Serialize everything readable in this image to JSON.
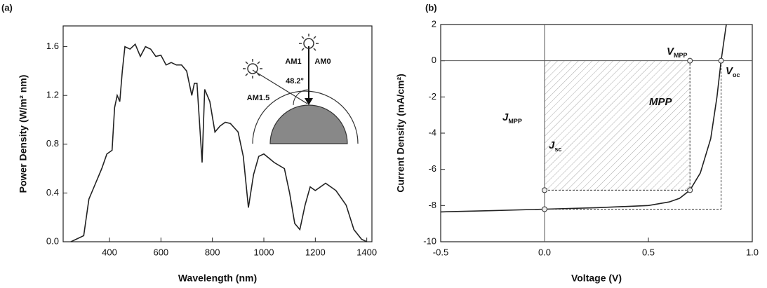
{
  "chart_data": [
    {
      "type": "line",
      "panel_label": "(a)",
      "x_label": "Wavelength (nm)",
      "y_label": "Power Density (W/m² nm)",
      "xlim": [
        220,
        1420
      ],
      "xticks": [
        400,
        600,
        800,
        1000,
        1200,
        1400
      ],
      "ylim": [
        0,
        1.77
      ],
      "yticks": [
        {
          "value": 0,
          "label": "0.0"
        },
        0.4,
        0.8,
        1.2,
        1.6
      ],
      "x": [
        250,
        300,
        320,
        350,
        370,
        390,
        410,
        420,
        430,
        440,
        450,
        460,
        480,
        500,
        520,
        540,
        560,
        580,
        600,
        620,
        640,
        660,
        680,
        700,
        720,
        730,
        740,
        760,
        770,
        790,
        810,
        830,
        850,
        870,
        900,
        920,
        940,
        960,
        980,
        1000,
        1040,
        1080,
        1100,
        1120,
        1140,
        1160,
        1180,
        1200,
        1240,
        1280,
        1320,
        1350,
        1380,
        1400
      ],
      "series": [
        {
          "color": "#222222",
          "values": [
            0,
            0.05,
            0.35,
            0.5,
            0.6,
            0.72,
            0.75,
            1.1,
            1.2,
            1.15,
            1.4,
            1.6,
            1.58,
            1.62,
            1.52,
            1.6,
            1.58,
            1.52,
            1.53,
            1.45,
            1.47,
            1.45,
            1.45,
            1.4,
            1.2,
            1.3,
            1.3,
            0.65,
            1.25,
            1.15,
            0.9,
            0.95,
            0.98,
            0.97,
            0.9,
            0.7,
            0.28,
            0.55,
            0.7,
            0.72,
            0.65,
            0.6,
            0.4,
            0.15,
            0.1,
            0.3,
            0.45,
            0.42,
            0.48,
            0.42,
            0.3,
            0.1,
            0.02,
            0
          ]
        }
      ],
      "inset_labels": [
        "AM1",
        "AM0",
        "AM1.5",
        "48.2°"
      ]
    },
    {
      "type": "line",
      "panel_label": "(b)",
      "x_label": "Voltage (V)",
      "y_label": "Current Density (mA/cm²)",
      "xlim": [
        -0.5,
        1.0
      ],
      "xticks": [
        -0.5,
        {
          "value": 0,
          "label": "0.0"
        },
        0.5,
        {
          "value": 1,
          "label": "1.0"
        }
      ],
      "ylim": [
        -10,
        2
      ],
      "yticks": [
        -10,
        -8,
        -6,
        -4,
        -2,
        0,
        2
      ],
      "x": [
        -0.5,
        -0.25,
        0,
        0.25,
        0.5,
        0.6,
        0.65,
        0.7,
        0.75,
        0.8,
        0.83,
        0.85,
        0.865,
        0.875
      ],
      "series": [
        {
          "color": "#222222",
          "values": [
            -8.35,
            -8.28,
            -8.2,
            -8.12,
            -8.0,
            -7.8,
            -7.6,
            -7.15,
            -6.2,
            -4.3,
            -2.0,
            0,
            1.2,
            2
          ]
        }
      ],
      "points": {
        "x": [
          0.7,
          0.85,
          0,
          0.7,
          0
        ],
        "y": [
          0,
          0,
          -7.15,
          -7.15,
          -8.2
        ]
      },
      "annotations": [
        {
          "main": "V",
          "sub": "MPP"
        },
        {
          "main": "V",
          "sub": "oc"
        },
        {
          "main": "J",
          "sub": "MPP"
        },
        {
          "main": "J",
          "sub": "sc"
        },
        {
          "main": "MPP"
        }
      ]
    }
  ]
}
